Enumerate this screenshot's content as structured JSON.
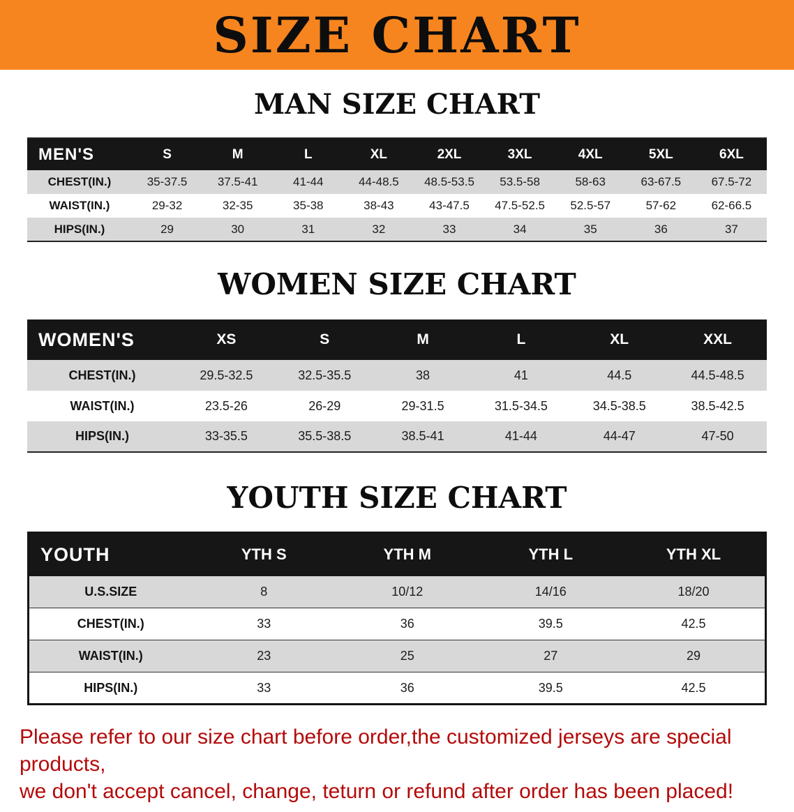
{
  "banner": {
    "title": "SIZE CHART"
  },
  "colors": {
    "banner_bg": "#f6851f",
    "header_bg": "#161616",
    "row_alt_bg": "#d8d8d8",
    "disclaimer_red": "#b40a0a"
  },
  "sections": [
    {
      "id": "men",
      "heading": "MAN SIZE CHART",
      "table": {
        "corner_label": "MEN'S",
        "label_col_width": 150,
        "columns": [
          "S",
          "M",
          "L",
          "XL",
          "2XL",
          "3XL",
          "4XL",
          "5XL",
          "6XL"
        ],
        "rows": [
          {
            "label": "CHEST(IN.)",
            "values": [
              "35-37.5",
              "37.5-41",
              "41-44",
              "44-48.5",
              "48.5-53.5",
              "53.5-58",
              "58-63",
              "63-67.5",
              "67.5-72"
            ]
          },
          {
            "label": "WAIST(IN.)",
            "values": [
              "29-32",
              "32-35",
              "35-38",
              "38-43",
              "43-47.5",
              "47.5-52.5",
              "52.5-57",
              "57-62",
              "62-66.5"
            ]
          },
          {
            "label": "HIPS(IN.)",
            "values": [
              "29",
              "30",
              "31",
              "32",
              "33",
              "34",
              "35",
              "36",
              "37"
            ]
          }
        ]
      }
    },
    {
      "id": "women",
      "heading": "WOMEN SIZE CHART",
      "table": {
        "corner_label": "WOMEN'S",
        "label_col_width": 215,
        "columns": [
          "XS",
          "S",
          "M",
          "L",
          "XL",
          "XXL"
        ],
        "rows": [
          {
            "label": "CHEST(IN.)",
            "values": [
              "29.5-32.5",
              "32.5-35.5",
              "38",
              "41",
              "44.5",
              "44.5-48.5"
            ]
          },
          {
            "label": "WAIST(IN.)",
            "values": [
              "23.5-26",
              "26-29",
              "29-31.5",
              "31.5-34.5",
              "34.5-38.5",
              "38.5-42.5"
            ]
          },
          {
            "label": "HIPS(IN.)",
            "values": [
              "33-35.5",
              "35.5-38.5",
              "38.5-41",
              "41-44",
              "44-47",
              "47-50"
            ]
          }
        ]
      }
    },
    {
      "id": "youth",
      "heading": "YOUTH SIZE CHART",
      "table": {
        "corner_label": "YOUTH",
        "label_col_width": 235,
        "columns": [
          "YTH S",
          "YTH M",
          "YTH L",
          "YTH XL"
        ],
        "rows": [
          {
            "label": "U.S.SIZE",
            "values": [
              "8",
              "10/12",
              "14/16",
              "18/20"
            ]
          },
          {
            "label": "CHEST(IN.)",
            "values": [
              "33",
              "36",
              "39.5",
              "42.5"
            ]
          },
          {
            "label": "WAIST(IN.)",
            "values": [
              "23",
              "25",
              "27",
              "29"
            ]
          },
          {
            "label": "HIPS(IN.)",
            "values": [
              "33",
              "36",
              "39.5",
              "42.5"
            ]
          }
        ]
      }
    }
  ],
  "disclaimer": {
    "line1": "Please refer to our size chart before order,the customized jerseys are special products,",
    "line2": "we don't accept cancel, change, teturn or refund after order has been placed!"
  }
}
